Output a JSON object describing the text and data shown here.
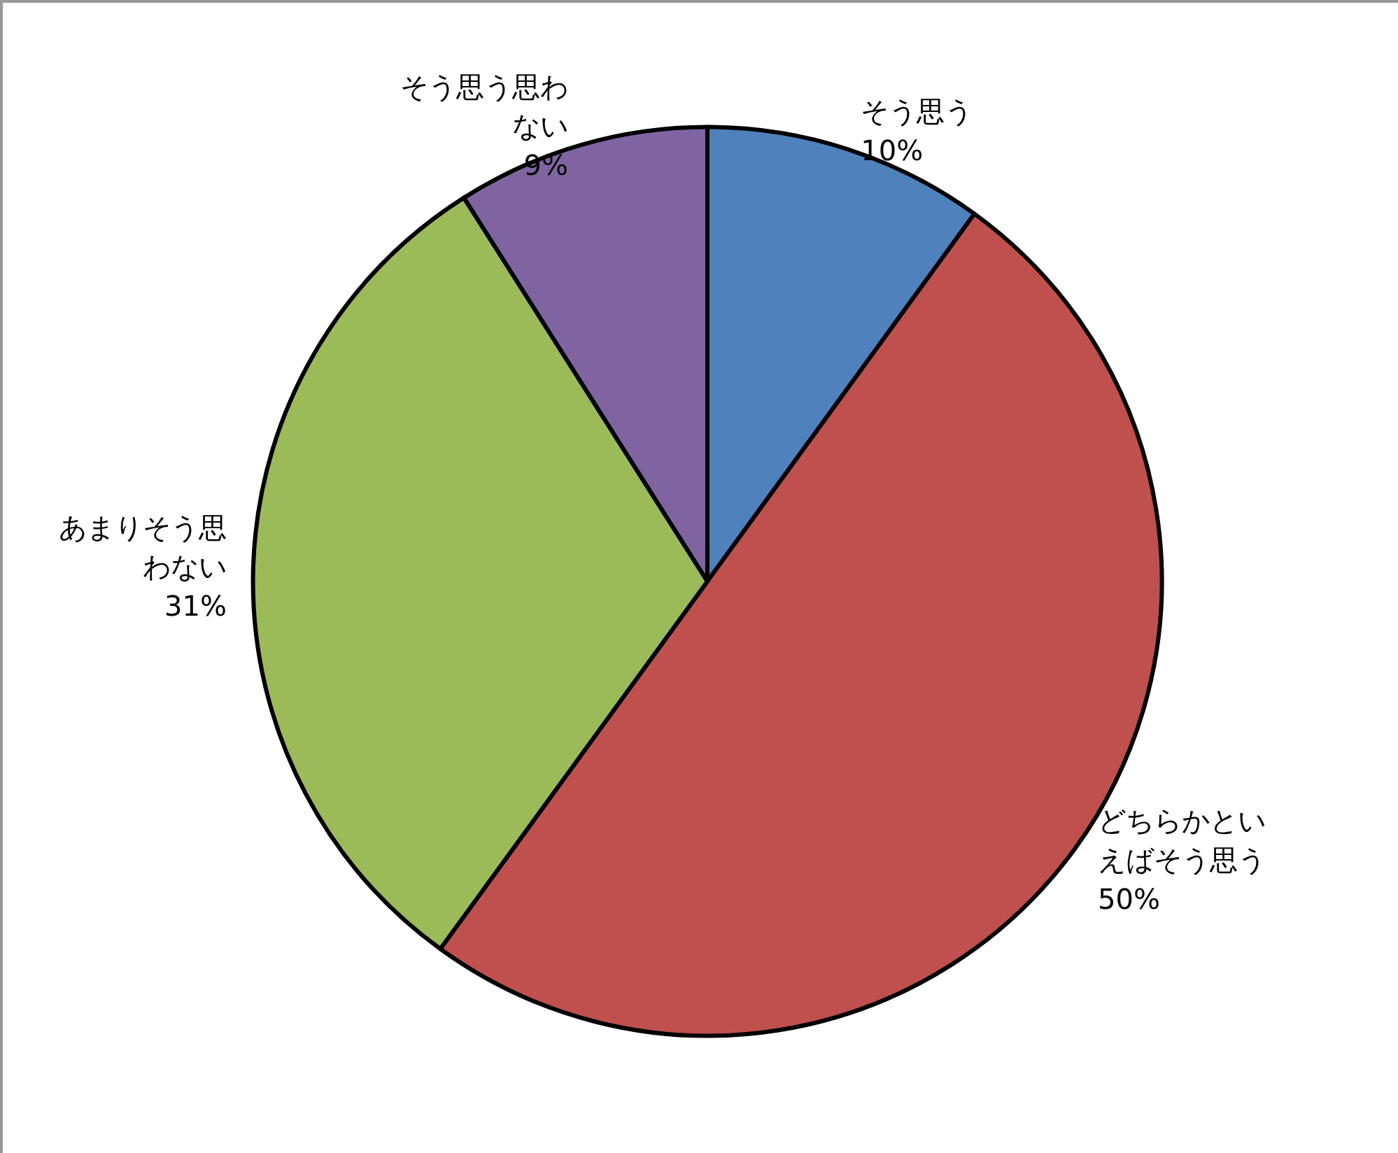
{
  "chart_data": {
    "type": "pie",
    "categories": [
      "そう思う",
      "どちらかといえばそう思う",
      "あまりそう思わない",
      "そう思う思わない"
    ],
    "values": [
      10,
      50,
      31,
      9
    ],
    "value_labels": [
      "10%",
      "50%",
      "31%",
      "9%"
    ],
    "colors": [
      "#4f81bd",
      "#c0504d",
      "#9bbb59",
      "#8064a2"
    ],
    "legend": false
  }
}
